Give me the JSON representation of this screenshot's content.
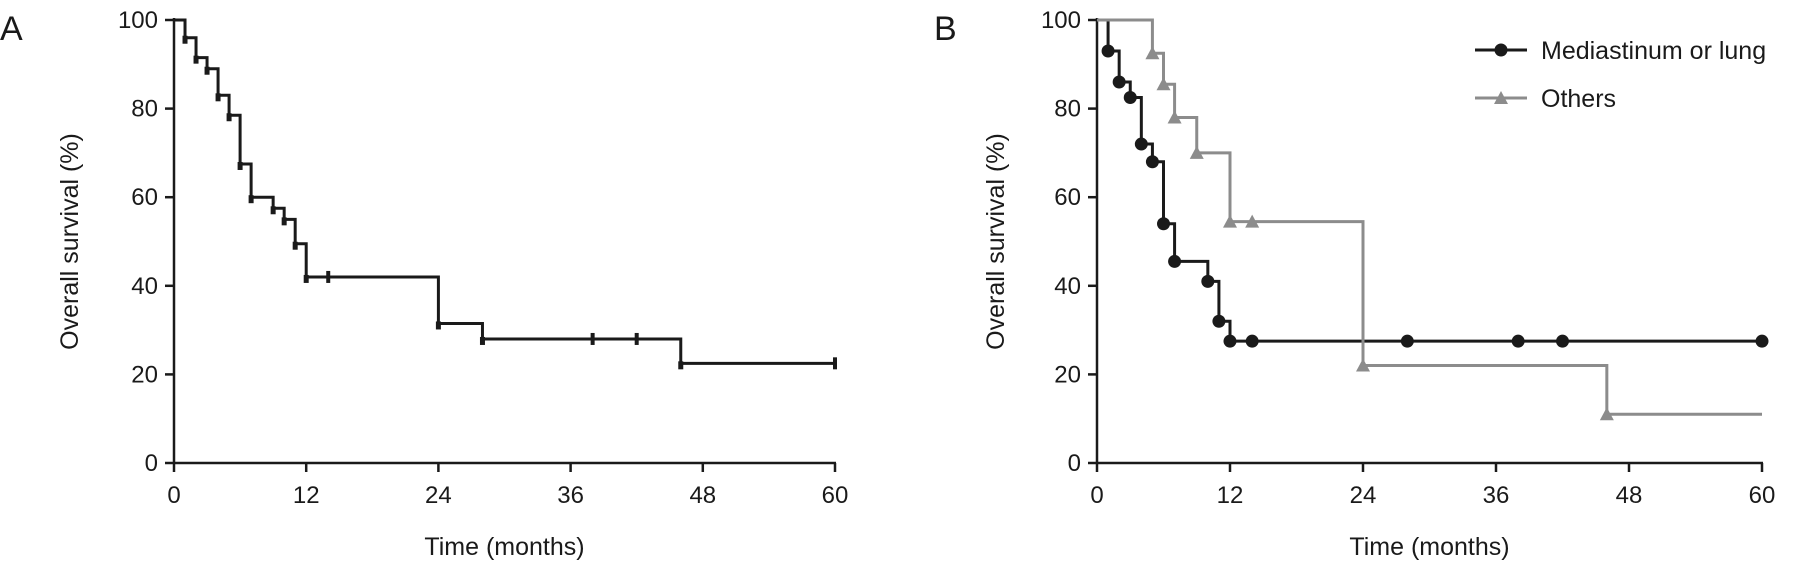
{
  "colors": {
    "black_series": "#1a1a1a",
    "gray_series": "#8c8c8c",
    "axis": "#1a1a1a"
  },
  "chart_data": [
    {
      "panel_label": "A",
      "type": "line",
      "step": "post",
      "title": "",
      "xlabel": "Time (months)",
      "ylabel": "Overall survival (%)",
      "xlim": [
        0,
        60
      ],
      "ylim": [
        0,
        100
      ],
      "xticks": [
        0,
        12,
        24,
        36,
        48,
        60
      ],
      "yticks": [
        0,
        20,
        40,
        60,
        80,
        100
      ],
      "legend": null,
      "series": [
        {
          "color": "#1a1a1a",
          "marker": "tick",
          "x": [
            0,
            1,
            2,
            3,
            4,
            5,
            6,
            7,
            9,
            10,
            11,
            12,
            24,
            28,
            46,
            60
          ],
          "y": [
            100,
            96,
            91.5,
            89,
            83,
            78.5,
            67.5,
            60,
            57.5,
            55,
            49.5,
            42,
            31.5,
            28,
            22.5,
            22.5
          ],
          "censored": [
            {
              "x": 14,
              "y": 42
            },
            {
              "x": 38,
              "y": 28
            },
            {
              "x": 42,
              "y": 28
            },
            {
              "x": 60,
              "y": 22.5
            }
          ]
        }
      ]
    },
    {
      "panel_label": "B",
      "type": "line",
      "step": "post",
      "title": "",
      "xlabel": "Time (months)",
      "ylabel": "Overall survival (%)",
      "xlim": [
        0,
        60
      ],
      "ylim": [
        0,
        100
      ],
      "xticks": [
        0,
        12,
        24,
        36,
        48,
        60
      ],
      "yticks": [
        0,
        20,
        40,
        60,
        80,
        100
      ],
      "legend": "top-right",
      "series": [
        {
          "name": "Mediastinum or lung",
          "color": "#1a1a1a",
          "marker": "circle",
          "x": [
            0,
            1,
            2,
            3,
            4,
            5,
            6,
            7,
            10,
            11,
            12,
            60
          ],
          "y": [
            100,
            93,
            86,
            82.5,
            72,
            68,
            54,
            45.5,
            41,
            32,
            27.5,
            27.5
          ],
          "markers": [
            {
              "x": 1,
              "y": 93
            },
            {
              "x": 2,
              "y": 86
            },
            {
              "x": 3,
              "y": 82.5
            },
            {
              "x": 4,
              "y": 72
            },
            {
              "x": 5,
              "y": 68
            },
            {
              "x": 6,
              "y": 54
            },
            {
              "x": 7,
              "y": 45.5
            },
            {
              "x": 10,
              "y": 41
            },
            {
              "x": 11,
              "y": 32
            },
            {
              "x": 12,
              "y": 27.5
            },
            {
              "x": 14,
              "y": 27.5
            },
            {
              "x": 28,
              "y": 27.5
            },
            {
              "x": 38,
              "y": 27.5
            },
            {
              "x": 42,
              "y": 27.5
            },
            {
              "x": 60,
              "y": 27.5
            }
          ]
        },
        {
          "name": "Others",
          "color": "#8c8c8c",
          "marker": "triangle",
          "x": [
            0,
            5,
            6,
            7,
            9,
            12,
            24,
            46,
            60
          ],
          "y": [
            100,
            92.5,
            85.5,
            78,
            70,
            54.5,
            22,
            11,
            11
          ],
          "markers": [
            {
              "x": 5,
              "y": 92.5
            },
            {
              "x": 6,
              "y": 85.5
            },
            {
              "x": 7,
              "y": 78
            },
            {
              "x": 9,
              "y": 70
            },
            {
              "x": 12,
              "y": 54.5
            },
            {
              "x": 14,
              "y": 54.5
            },
            {
              "x": 24,
              "y": 22
            },
            {
              "x": 46,
              "y": 11
            }
          ]
        }
      ]
    }
  ]
}
